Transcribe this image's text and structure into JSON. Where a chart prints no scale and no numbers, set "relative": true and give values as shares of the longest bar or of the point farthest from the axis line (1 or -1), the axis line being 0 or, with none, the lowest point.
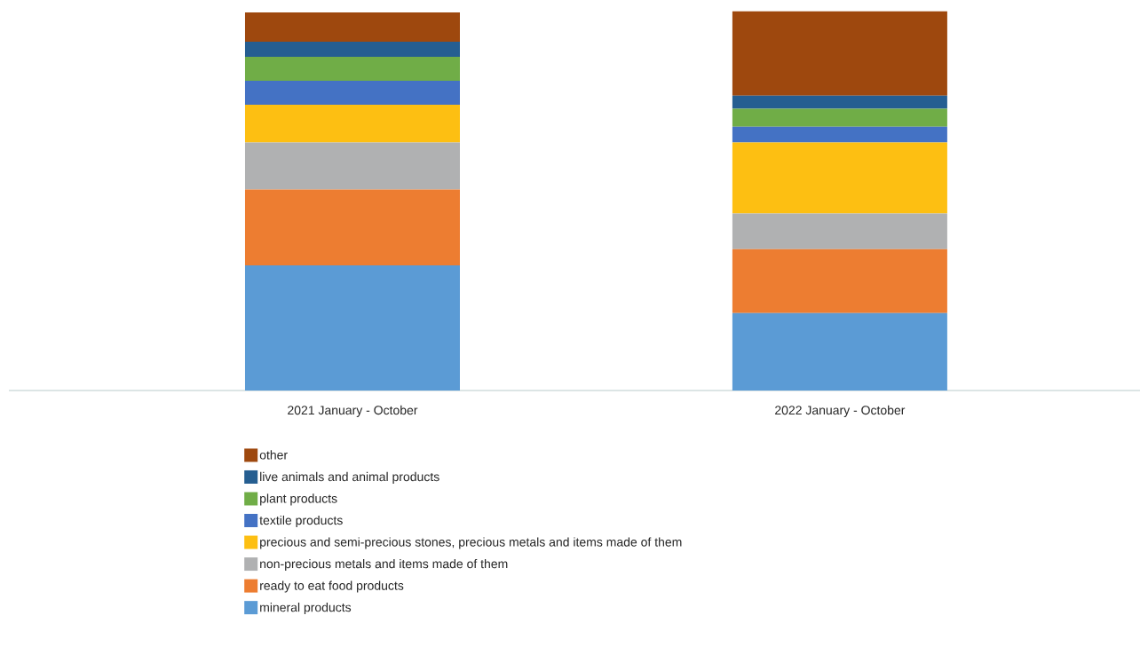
{
  "chart_data": {
    "type": "bar",
    "stacked": true,
    "relative": true,
    "legend": "bottom",
    "categories": [
      "2021 January - October",
      "2022 January - October"
    ],
    "series": [
      {
        "name": "mineral products",
        "color": "#5b9bd5",
        "values": [
          0.33,
          0.204
        ]
      },
      {
        "name": "ready to eat food products",
        "color": "#ed7d31",
        "values": [
          0.2,
          0.169
        ]
      },
      {
        "name": "non-precious metals and items made of them",
        "color": "#b0b1b2",
        "values": [
          0.124,
          0.094
        ]
      },
      {
        "name": "precious and semi-precious stones, precious metals and items made of them",
        "color": "#fdbf12",
        "values": [
          0.1,
          0.187
        ]
      },
      {
        "name": "textile products",
        "color": "#4472c4",
        "values": [
          0.063,
          0.042
        ]
      },
      {
        "name": "plant products",
        "color": "#70ad47",
        "values": [
          0.063,
          0.047
        ]
      },
      {
        "name": "live animals and animal products",
        "color": "#255e91",
        "values": [
          0.04,
          0.035
        ]
      },
      {
        "name": "other",
        "color": "#9e480e",
        "values": [
          0.077,
          0.222
        ]
      }
    ]
  }
}
